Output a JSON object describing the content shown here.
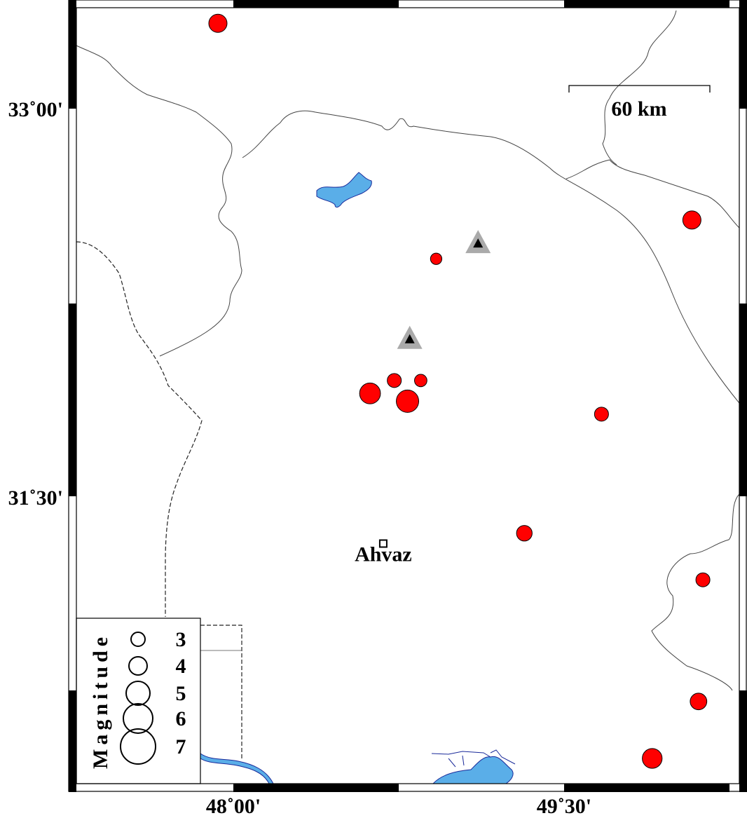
{
  "map": {
    "extent": {
      "lon_min": 47.253,
      "lon_max": 50.33,
      "lat_min": 30.36,
      "lat_max": 33.42
    },
    "lon_ticks": [
      {
        "value": 48.0,
        "label": "48˚00'"
      },
      {
        "value": 49.5,
        "label": "49˚30'"
      }
    ],
    "lat_ticks": [
      {
        "value": 33.0,
        "label": "33˚00'"
      },
      {
        "value": 31.5,
        "label": "31˚30'"
      }
    ],
    "scale_bar": {
      "label": "60 km"
    },
    "colors": {
      "event_fill": "#ff0000",
      "water": "#5aaee8",
      "water_edge": "#1a2a9a",
      "station_outer": "#aaaaaa",
      "station_inner": "#000000"
    }
  },
  "events": [
    {
      "lon": 47.93,
      "lat": 33.33,
      "magnitude": 3.8
    },
    {
      "lon": 50.08,
      "lat": 32.57,
      "magnitude": 3.8
    },
    {
      "lon": 48.92,
      "lat": 32.42,
      "magnitude": 2.5
    },
    {
      "lon": 48.73,
      "lat": 31.95,
      "magnitude": 3.0
    },
    {
      "lon": 48.85,
      "lat": 31.95,
      "magnitude": 2.7
    },
    {
      "lon": 48.62,
      "lat": 31.9,
      "magnitude": 4.3
    },
    {
      "lon": 48.79,
      "lat": 31.87,
      "magnitude": 4.6
    },
    {
      "lon": 49.67,
      "lat": 31.82,
      "magnitude": 3.0
    },
    {
      "lon": 49.32,
      "lat": 31.36,
      "magnitude": 3.3
    },
    {
      "lon": 50.13,
      "lat": 31.18,
      "magnitude": 3.0
    },
    {
      "lon": 50.11,
      "lat": 30.71,
      "magnitude": 3.5
    },
    {
      "lon": 49.9,
      "lat": 30.49,
      "magnitude": 4.1
    }
  ],
  "stations": [
    {
      "lon": 49.11,
      "lat": 32.48
    },
    {
      "lon": 48.8,
      "lat": 32.11
    }
  ],
  "cities": [
    {
      "name": "Ahvaz",
      "lon": 48.68,
      "lat": 31.32
    }
  ],
  "legend": {
    "title": "Magnitude",
    "items": [
      {
        "label": "3",
        "magnitude": 3
      },
      {
        "label": "4",
        "magnitude": 4
      },
      {
        "label": "5",
        "magnitude": 5
      },
      {
        "label": "6",
        "magnitude": 6
      },
      {
        "label": "7",
        "magnitude": 7
      }
    ]
  }
}
